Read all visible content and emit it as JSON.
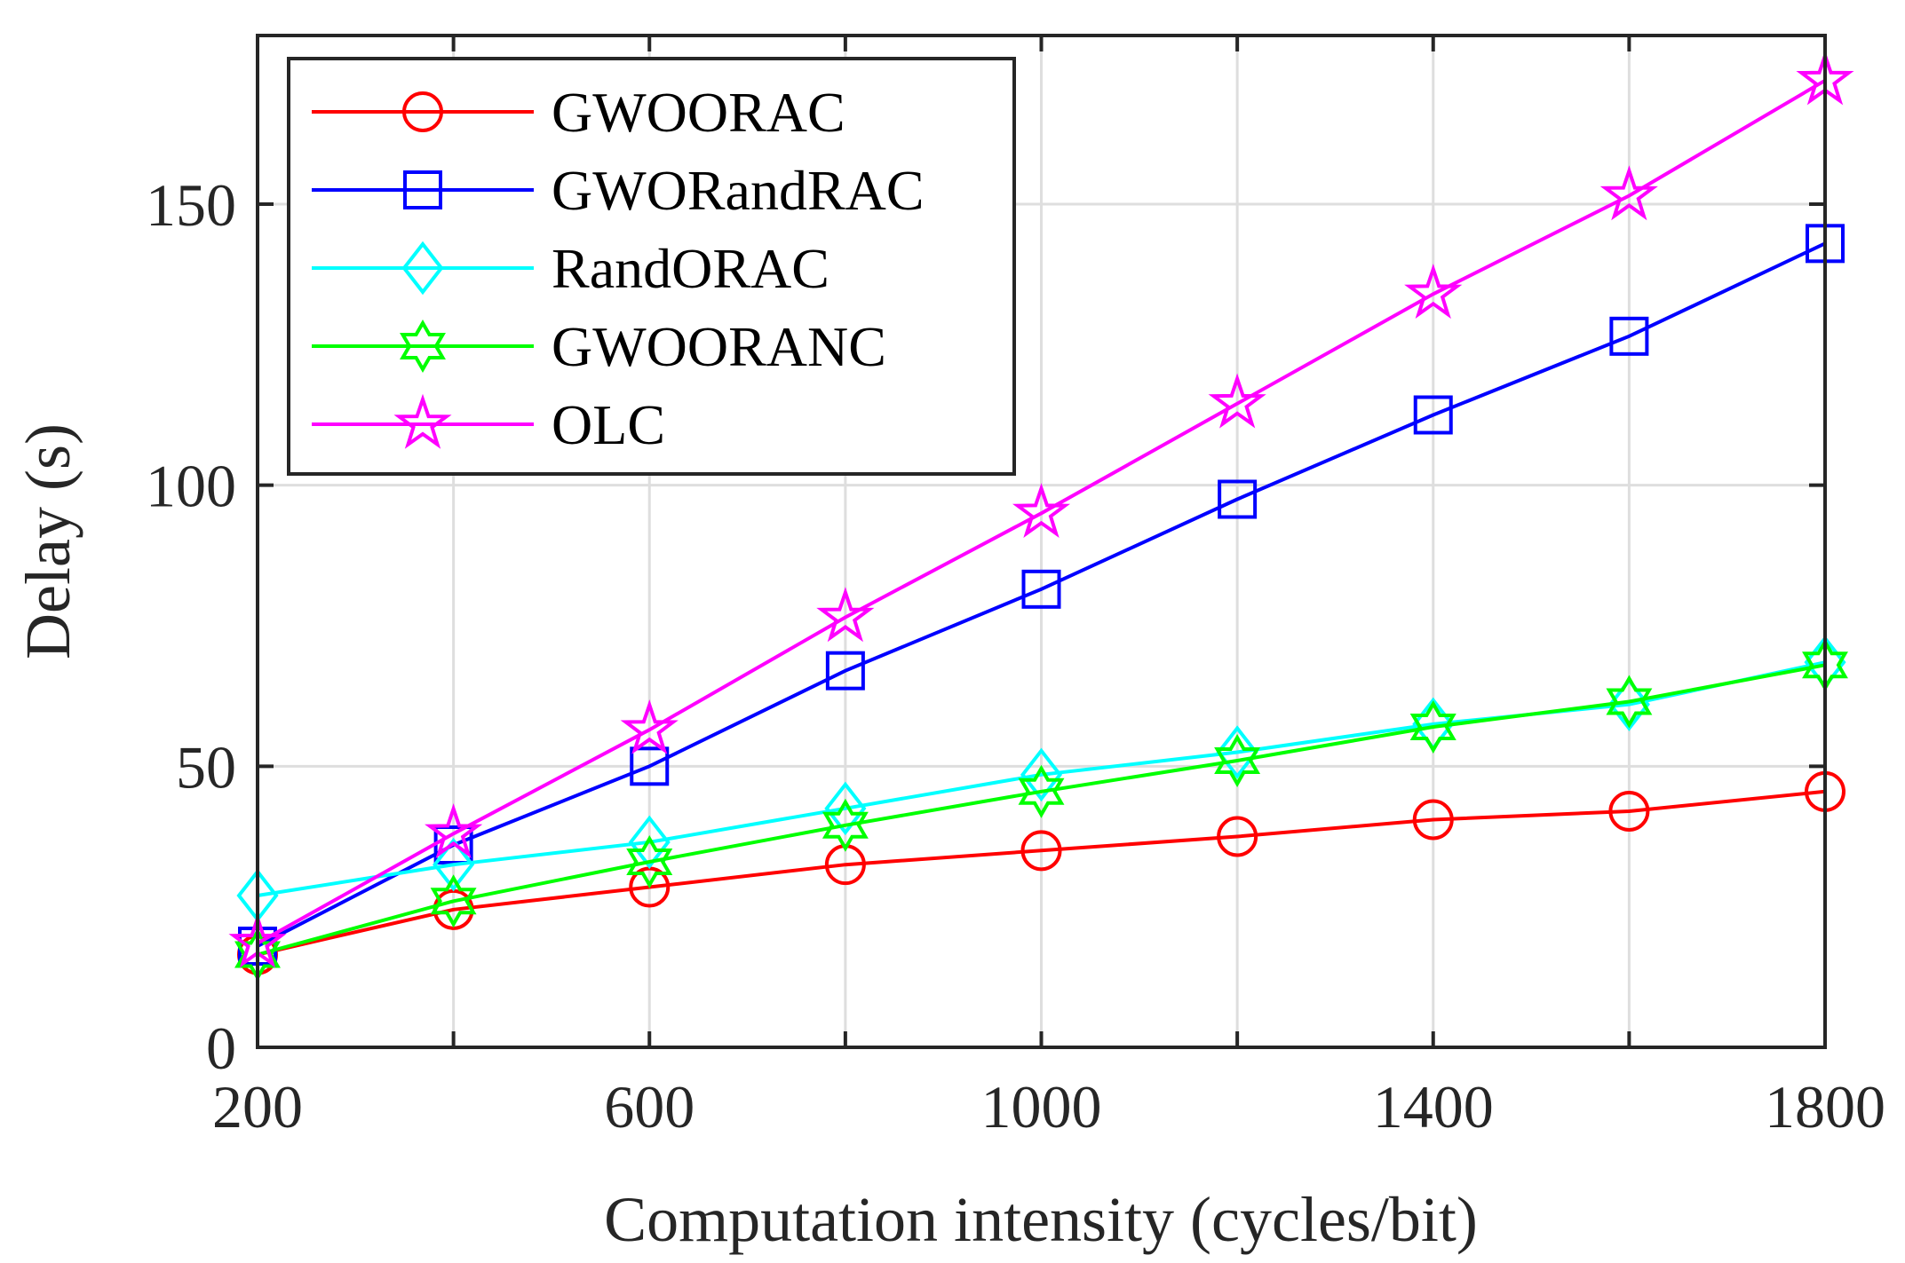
{
  "chart_data": {
    "type": "line",
    "title": "",
    "xlabel": "Computation intensity (cycles/bit)",
    "ylabel": "Delay (s)",
    "xlim": [
      200,
      1800
    ],
    "ylim": [
      0,
      180
    ],
    "xticks": [
      200,
      600,
      1000,
      1400,
      1800
    ],
    "xtick_labels": [
      "200",
      "600",
      "1000",
      "1400",
      "1800"
    ],
    "yticks": [
      0,
      50,
      100,
      150
    ],
    "ytick_labels": [
      "0",
      "50",
      "100",
      "150"
    ],
    "x_grid": [
      200,
      400,
      600,
      800,
      1000,
      1200,
      1400,
      1600,
      1800
    ],
    "grid": true,
    "legend_position": "top-left",
    "x": [
      200,
      400,
      600,
      800,
      1000,
      1200,
      1400,
      1600,
      1800
    ],
    "series": [
      {
        "name": "GWOORAC",
        "color": "#ff0000",
        "marker": "circle",
        "values": [
          16.5,
          24.5,
          28.5,
          32.5,
          35,
          37.5,
          40.5,
          42,
          45.5
        ]
      },
      {
        "name": "GWORandRAC",
        "color": "#0000ff",
        "marker": "square",
        "values": [
          18,
          36,
          50,
          67,
          81.5,
          97.5,
          112.5,
          126.5,
          143
        ]
      },
      {
        "name": "RandORAC",
        "color": "#00ffff",
        "marker": "diamond",
        "values": [
          27,
          32.5,
          36.5,
          42.5,
          48.5,
          52.5,
          57.5,
          61,
          68.5
        ]
      },
      {
        "name": "GWOORANC",
        "color": "#00ff00",
        "marker": "hexagram",
        "values": [
          16.5,
          26,
          33,
          39.5,
          45.5,
          51,
          57,
          61.5,
          68
        ]
      },
      {
        "name": "OLC",
        "color": "#ff00ff",
        "marker": "pentagram",
        "values": [
          18.5,
          38,
          56.5,
          76.5,
          95,
          114.5,
          134,
          151.5,
          172
        ]
      }
    ]
  }
}
